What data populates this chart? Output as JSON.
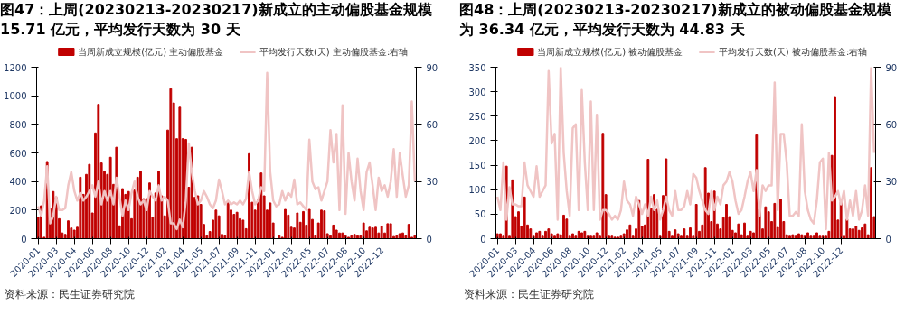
{
  "chart_data": [
    {
      "type": "bar",
      "title": "图47：上周(20230213-20230217)新成立的主动偏股基金规模 15.71 亿元，平均发行天数为 30 天",
      "categories": [
        "2020-01",
        null,
        null,
        null,
        null,
        null,
        "2020-03",
        null,
        null,
        null,
        null,
        null,
        "2020-04",
        null,
        null,
        null,
        null,
        null,
        "2020-06",
        null,
        null,
        null,
        null,
        null,
        "2020-08",
        null,
        null,
        null,
        null,
        null,
        "2020-10",
        null,
        null,
        null,
        null,
        null,
        "2020-12",
        null,
        null,
        null,
        null,
        null,
        "2021-02",
        null,
        null,
        null,
        null,
        null,
        "2021-04",
        null,
        null,
        null,
        null,
        null,
        "2021-05",
        null,
        null,
        null,
        null,
        null,
        "2021-07",
        null,
        null,
        null,
        null,
        null,
        "2021-09",
        null,
        null,
        null,
        null,
        null,
        "2021-11",
        null,
        null,
        null,
        null,
        null,
        "2022-01",
        null,
        null,
        null,
        null,
        null,
        "2022-03",
        null,
        null,
        null,
        null,
        null,
        "2022-05",
        null,
        null,
        null,
        null,
        null,
        "2022-07",
        null,
        null,
        null,
        null,
        null,
        "2022-08",
        null,
        null,
        null,
        null,
        null,
        "2022-10",
        null,
        null,
        null,
        null,
        null,
        "2022-12",
        null,
        null,
        null,
        null,
        null,
        null,
        null,
        null,
        null,
        null,
        null
      ],
      "series": [
        {
          "name": "当周新成立规模(亿元) 主动偏股基金",
          "color": "#c00000",
          "values": [
            150,
            230,
            10,
            540,
            210,
            330,
            290,
            140,
            40,
            30,
            125,
            75,
            60,
            80,
            430,
            310,
            450,
            520,
            180,
            740,
            940,
            530,
            470,
            450,
            570,
            380,
            640,
            90,
            350,
            310,
            330,
            140,
            340,
            430,
            470,
            280,
            280,
            390,
            150,
            320,
            470,
            300,
            160,
            760,
            1050,
            950,
            700,
            920,
            700,
            695,
            360,
            640,
            290,
            300,
            240,
            100,
            20,
            50,
            130,
            200,
            160,
            30,
            20,
            260,
            200,
            170,
            185,
            140,
            130,
            70,
            595,
            255,
            200,
            270,
            460,
            300,
            200,
            250,
            110,
            0,
            20,
            10,
            205,
            165,
            80,
            75,
            180,
            115,
            190,
            95,
            205,
            135,
            20,
            110,
            200,
            195,
            35,
            20,
            95,
            60,
            40,
            40,
            20,
            10,
            20,
            30,
            20,
            20,
            110,
            55,
            80,
            75,
            80,
            40,
            85,
            40,
            105,
            105,
            15,
            20,
            35,
            40,
            20,
            100,
            10,
            20
          ]
        },
        {
          "name": "平均发行天数(天) 主动偏股基金:右轴",
          "type": "line",
          "axis": "y2",
          "color": "#f0c4c4",
          "values": [
            17,
            12,
            20,
            38,
            8,
            12,
            22,
            15,
            15,
            16,
            28,
            35,
            25,
            20,
            24,
            20,
            22,
            25,
            28,
            22,
            30,
            18,
            25,
            20,
            25,
            18,
            32,
            22,
            12,
            20,
            15,
            24,
            30,
            22,
            18,
            20,
            15,
            25,
            22,
            20,
            28,
            20,
            22,
            20,
            8,
            8,
            5,
            10,
            6,
            20,
            50,
            35,
            25,
            18,
            20,
            25,
            22,
            18,
            16,
            20,
            31,
            25,
            18,
            20,
            18,
            19,
            18,
            20,
            18,
            21,
            35,
            25,
            18,
            20,
            27,
            25,
            87,
            35,
            20,
            17,
            18,
            25,
            20,
            24,
            22,
            31,
            18,
            19,
            17,
            15,
            52,
            30,
            26,
            27,
            20,
            25,
            30,
            57,
            40,
            55,
            15,
            70,
            13,
            45,
            30,
            20,
            42,
            25,
            15,
            35,
            40,
            28,
            15,
            32,
            25,
            28,
            22,
            30,
            47,
            22,
            45,
            33,
            22,
            28,
            72,
            30
          ]
        }
      ],
      "ylim": [
        0,
        1200
      ],
      "yticks": [
        0,
        200,
        400,
        600,
        800,
        1000,
        1200
      ],
      "y2lim": [
        0,
        90
      ],
      "y2ticks": [
        0,
        30,
        60,
        90
      ],
      "legend": "top",
      "annotations": [
        "资料来源：民生证券研究院"
      ]
    },
    {
      "type": "bar",
      "title": "图48：上周(20230213-20230217)新成立的被动偏股基金规模为 36.34 亿元，平均发行天数为 44.83 天",
      "categories": [
        "2020-01",
        null,
        null,
        null,
        null,
        null,
        "2020-03",
        null,
        null,
        null,
        null,
        null,
        "2020-04",
        null,
        null,
        null,
        null,
        null,
        "2020-06",
        null,
        null,
        null,
        null,
        null,
        "2020-08",
        null,
        null,
        null,
        null,
        null,
        "2020-10",
        null,
        null,
        null,
        null,
        null,
        "2020-12",
        null,
        null,
        null,
        null,
        null,
        "2021-02",
        null,
        null,
        null,
        null,
        null,
        "2021-04",
        null,
        null,
        null,
        null,
        null,
        "2021-05",
        null,
        null,
        null,
        null,
        null,
        "2021-07",
        null,
        null,
        null,
        null,
        null,
        "2021-09",
        null,
        null,
        null,
        null,
        null,
        "2021-11",
        null,
        null,
        null,
        null,
        null,
        "2022-01",
        null,
        null,
        null,
        null,
        null,
        "2022-03",
        null,
        null,
        null,
        null,
        null,
        "2022-05",
        null,
        null,
        null,
        null,
        null,
        "2022-07",
        null,
        null,
        null,
        null,
        null,
        "2022-08",
        null,
        null,
        null,
        null,
        null,
        "2022-10",
        null,
        null,
        null,
        null,
        null,
        "2022-12",
        null,
        null,
        null,
        null,
        null,
        null,
        null,
        null,
        null,
        null,
        null
      ],
      "series": [
        {
          "name": "当周新成立规模(亿元) 被动偏股基金",
          "color": "#c00000",
          "values": [
            10,
            10,
            5,
            148,
            5,
            120,
            45,
            55,
            25,
            85,
            28,
            20,
            5,
            12,
            15,
            5,
            15,
            20,
            10,
            5,
            10,
            8,
            48,
            40,
            5,
            10,
            5,
            15,
            12,
            15,
            5,
            5,
            5,
            12,
            5,
            215,
            90,
            5,
            5,
            3,
            3,
            5,
            10,
            18,
            28,
            5,
            20,
            78,
            25,
            28,
            162,
            62,
            90,
            60,
            5,
            88,
            163,
            15,
            5,
            18,
            10,
            5,
            20,
            5,
            22,
            5,
            70,
            15,
            28,
            145,
            93,
            35,
            97,
            30,
            20,
            43,
            70,
            45,
            17,
            12,
            30,
            8,
            32,
            5,
            15,
            12,
            212,
            60,
            20,
            65,
            55,
            35,
            72,
            23,
            80,
            35,
            8,
            5,
            8,
            5,
            10,
            8,
            5,
            12,
            5,
            5,
            12,
            5,
            5,
            5,
            15,
            170,
            290,
            38,
            75,
            5,
            40,
            20,
            20,
            25,
            17,
            22,
            30,
            8,
            145,
            45
          ]
        },
        {
          "name": "平均发行天数(天) 被动偏股基金:右轴",
          "type": "line",
          "axis": "y2",
          "color": "#f0c4c4",
          "values": [
            22,
            15,
            40,
            10,
            27,
            18,
            18,
            17,
            17,
            40,
            28,
            25,
            22,
            38,
            22,
            25,
            28,
            88,
            50,
            55,
            10,
            90,
            45,
            25,
            12,
            58,
            60,
            15,
            78,
            40,
            15,
            72,
            15,
            65,
            10,
            15,
            15,
            13,
            10,
            12,
            10,
            15,
            30,
            20,
            18,
            12,
            22,
            18,
            13,
            18,
            12,
            22,
            15,
            20,
            10,
            15,
            22,
            15,
            12,
            25,
            15,
            15,
            17,
            25,
            18,
            34,
            32,
            25,
            20,
            15,
            13,
            25,
            15,
            22,
            18,
            28,
            30,
            35,
            30,
            20,
            13,
            15,
            22,
            30,
            35,
            25,
            36,
            12,
            28,
            25,
            28,
            28,
            82,
            15,
            55,
            55,
            40,
            12,
            12,
            14,
            12,
            60,
            25,
            15,
            10,
            8,
            20,
            40,
            42,
            5,
            45,
            20,
            22,
            25,
            18,
            25,
            10,
            20,
            12,
            25,
            10,
            15,
            28,
            12,
            90,
            45
          ]
        }
      ],
      "ylim": [
        0,
        350
      ],
      "yticks": [
        0,
        50,
        100,
        150,
        200,
        250,
        300,
        350
      ],
      "y2lim": [
        0,
        90
      ],
      "y2ticks": [
        0,
        30,
        60,
        90
      ],
      "legend": "top",
      "annotations": [
        "资料来源：民生证券研究院"
      ]
    }
  ]
}
